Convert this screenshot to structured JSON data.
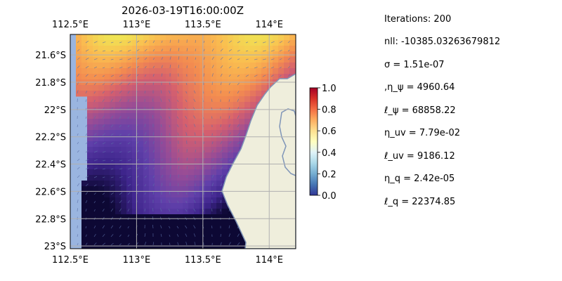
{
  "chart_data": {
    "type": "heatmap",
    "title": "2026-03-19T16:00:00Z",
    "x_ticks": [
      "112.5°E",
      "113°E",
      "113.5°E",
      "114°E"
    ],
    "x_tick_values": [
      112.5,
      113.0,
      113.5,
      114.0
    ],
    "y_ticks": [
      "21.6°S",
      "21.8°S",
      "22°S",
      "22.2°S",
      "22.4°S",
      "22.6°S",
      "22.8°S",
      "23°S"
    ],
    "y_tick_values": [
      -21.6,
      -21.8,
      -22.0,
      -22.2,
      -22.4,
      -22.6,
      -22.8,
      -23.0
    ],
    "xlim": [
      112.5,
      114.2
    ],
    "ylim": [
      -23.02,
      -21.45
    ],
    "grid": true,
    "colorbar": {
      "range": [
        0.0,
        1.0
      ],
      "ticks": [
        "0.0",
        "0.2",
        "0.4",
        "0.6",
        "0.8",
        "1.0"
      ],
      "tick_values": [
        0.0,
        0.2,
        0.4,
        0.6,
        0.8,
        1.0
      ],
      "colormap": "RdYlBu_r"
    },
    "map_colors": {
      "ocean": "#9ab5e0",
      "land": "#efeedc",
      "coast": "#7f95b8"
    }
  },
  "stats": [
    "Iterations: 200",
    "nll: -10385.03263679812",
    "σ = 1.51e-07",
    ",η_ψ = 4960.64",
    "ℓ_ψ = 68858.22",
    "η_uv = 7.79e-02",
    "ℓ_uv = 9186.12",
    "η_q = 2.42e-05",
    "ℓ_q = 22374.85"
  ]
}
